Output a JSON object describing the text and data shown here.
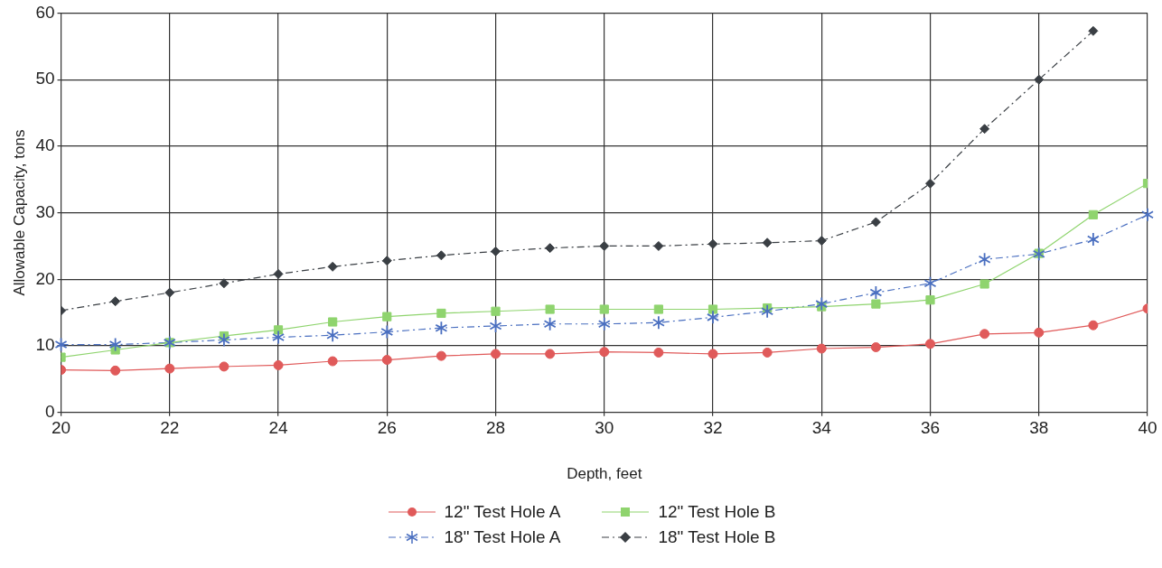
{
  "chart_data": {
    "type": "line",
    "xlabel": "Depth, feet",
    "ylabel": "Allowable Capacity, tons",
    "x": [
      20,
      21,
      22,
      23,
      24,
      25,
      26,
      27,
      28,
      29,
      30,
      31,
      32,
      33,
      34,
      35,
      36,
      37,
      38,
      39,
      40
    ],
    "xlim": [
      20,
      40
    ],
    "xticks": [
      20,
      22,
      24,
      26,
      28,
      30,
      32,
      34,
      36,
      38,
      40
    ],
    "ylim": [
      0,
      60
    ],
    "yticks": [
      0,
      10,
      20,
      30,
      40,
      50,
      60
    ],
    "grid": true,
    "legend": "bottom",
    "series": [
      {
        "name": "12\" Test Hole A",
        "color": "#e05a5a",
        "marker": "circle",
        "line_style": "solid",
        "values": [
          6.4,
          6.3,
          6.6,
          6.9,
          7.1,
          7.7,
          7.9,
          8.5,
          8.8,
          8.8,
          9.1,
          9.0,
          8.8,
          9.0,
          9.6,
          9.8,
          10.3,
          11.8,
          12.0,
          13.1,
          15.6
        ]
      },
      {
        "name": "12\" Test Hole B",
        "color": "#8fd46e",
        "marker": "square",
        "line_style": "solid",
        "values": [
          8.3,
          9.4,
          10.5,
          11.5,
          12.4,
          13.6,
          14.4,
          14.9,
          15.2,
          15.5,
          15.5,
          15.5,
          15.5,
          15.7,
          15.9,
          16.3,
          16.9,
          19.3,
          23.9,
          29.7,
          34.4
        ]
      },
      {
        "name": "18\" Test Hole A",
        "color": "#4a6fc0",
        "marker": "star",
        "line_style": "dashed",
        "values": [
          10.2,
          10.2,
          10.5,
          10.9,
          11.3,
          11.6,
          12.1,
          12.7,
          13.0,
          13.3,
          13.3,
          13.5,
          14.3,
          15.2,
          16.3,
          18.0,
          19.4,
          23.0,
          23.8,
          26.0,
          29.7
        ]
      },
      {
        "name": "18\" Test Hole B",
        "color": "#3a3f44",
        "marker": "diamond",
        "line_style": "dashed",
        "values": [
          15.3,
          16.7,
          18.0,
          19.4,
          20.8,
          21.9,
          22.8,
          23.6,
          24.2,
          24.7,
          25.0,
          25.0,
          25.3,
          25.5,
          25.8,
          28.6,
          34.4,
          42.6,
          50.0,
          57.3,
          null
        ]
      }
    ]
  }
}
